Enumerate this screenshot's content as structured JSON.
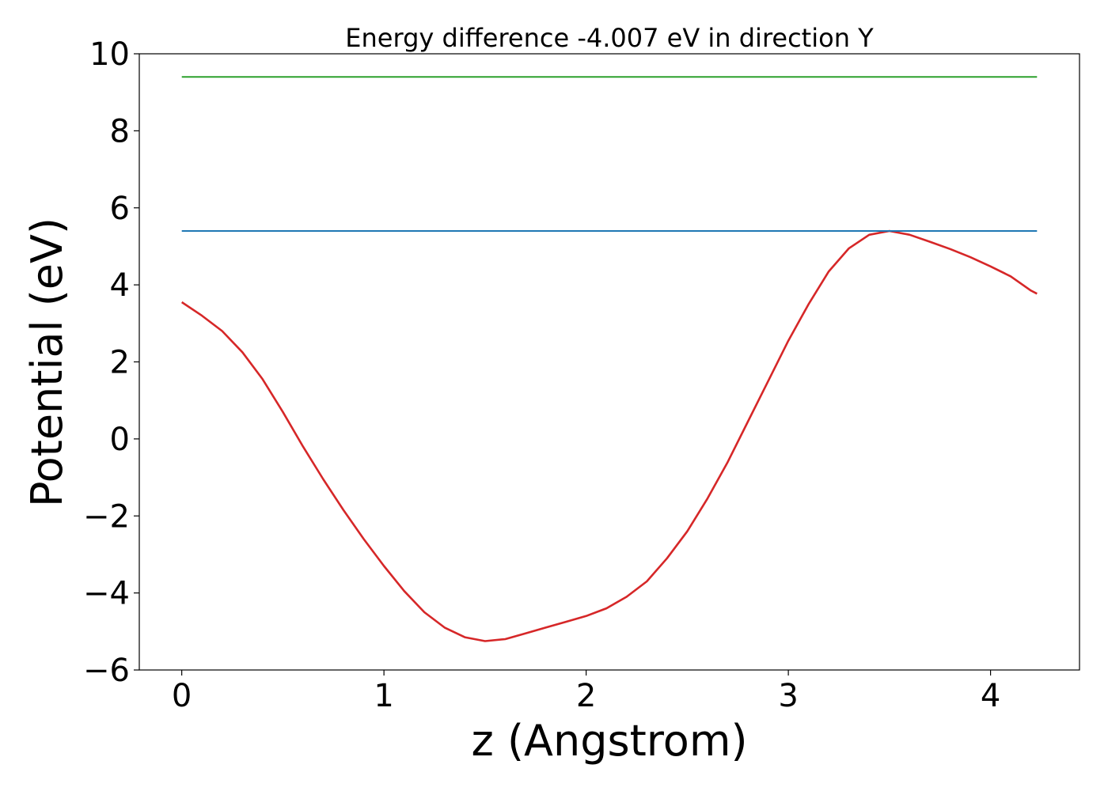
{
  "chart_data": {
    "type": "line",
    "title": "Energy difference -4.007 eV in direction Y",
    "xlabel": "z (Angstrom)",
    "ylabel": "Potential (eV)",
    "xlim": [
      -0.21,
      4.44
    ],
    "ylim": [
      -6,
      10
    ],
    "xticks": [
      0,
      1,
      2,
      3,
      4
    ],
    "yticks": [
      -6,
      -4,
      -2,
      0,
      2,
      4,
      6,
      8,
      10
    ],
    "xtick_labels": [
      "0",
      "1",
      "2",
      "3",
      "4"
    ],
    "ytick_labels": [
      "−6",
      "−4",
      "−2",
      "0",
      "2",
      "4",
      "6",
      "8",
      "10"
    ],
    "grid": false,
    "legend": "none",
    "series": [
      {
        "color": "#d62728",
        "x": [
          0,
          0.1,
          0.2,
          0.3,
          0.4,
          0.5,
          0.6,
          0.7,
          0.8,
          0.9,
          1.0,
          1.1,
          1.2,
          1.3,
          1.4,
          1.5,
          1.6,
          1.7,
          1.8,
          1.9,
          2.0,
          2.1,
          2.2,
          2.3,
          2.4,
          2.5,
          2.6,
          2.7,
          2.8,
          2.9,
          3.0,
          3.1,
          3.2,
          3.3,
          3.4,
          3.5,
          3.6,
          3.7,
          3.8,
          3.9,
          4.0,
          4.1,
          4.2,
          4.23
        ],
        "y": [
          3.55,
          3.2,
          2.8,
          2.25,
          1.55,
          0.7,
          -0.2,
          -1.05,
          -1.85,
          -2.6,
          -3.3,
          -3.95,
          -4.5,
          -4.9,
          -5.15,
          -5.25,
          -5.2,
          -5.05,
          -4.9,
          -4.75,
          -4.6,
          -4.4,
          -4.1,
          -3.7,
          -3.1,
          -2.4,
          -1.55,
          -0.6,
          0.45,
          1.5,
          2.55,
          3.5,
          4.35,
          4.95,
          5.3,
          5.4,
          5.3,
          5.12,
          4.93,
          4.72,
          4.48,
          4.22,
          3.85,
          3.77
        ]
      },
      {
        "color": "#1f77b4",
        "x": [
          0,
          4.23
        ],
        "y": [
          5.4,
          5.4
        ]
      },
      {
        "color": "#2ca02c",
        "x": [
          0,
          4.23
        ],
        "y": [
          9.4,
          9.4
        ]
      }
    ]
  }
}
